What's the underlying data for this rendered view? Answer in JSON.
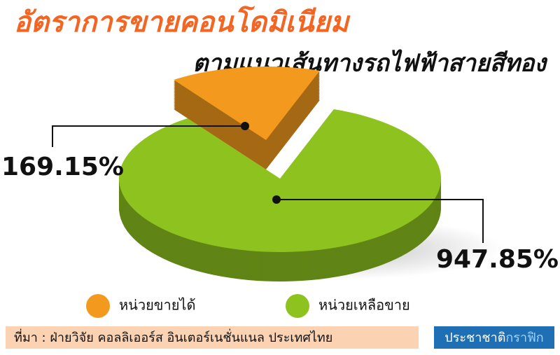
{
  "chart_data": {
    "type": "pie",
    "title": "อัตราการขายคอนโดมิเนียม",
    "subtitle": "ตามแนวเส้นทางรถไฟฟ้าสายสีทอง",
    "categories": [
      "หน่วยขายได้",
      "หน่วยเหลือขาย"
    ],
    "values": [
      169.15,
      947.85
    ],
    "value_labels": [
      "169.15%",
      "947.85%"
    ],
    "colors": [
      "#f39a1e",
      "#8dc21f"
    ],
    "source": "ที่มา : ฝ่ายวิจัย คอลลิเออร์ส อินเตอร์เนชั่นแนล ประเทศไทย",
    "credit": {
      "name": "ประชาชาติ",
      "tag": "กราฟิก"
    }
  }
}
